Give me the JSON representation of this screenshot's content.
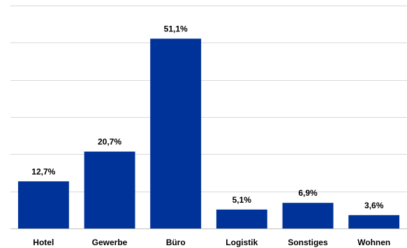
{
  "chart_data": {
    "type": "bar",
    "categories": [
      "Hotel",
      "Gewerbe",
      "Büro",
      "Logistik",
      "Sonstiges",
      "Wohnen"
    ],
    "values": [
      12.7,
      20.7,
      51.1,
      5.1,
      6.9,
      3.6
    ],
    "data_labels": [
      "12,7%",
      "20,7%",
      "51,1%",
      "5,1%",
      "6,9%",
      "3,6%"
    ],
    "title": "",
    "xlabel": "",
    "ylabel": "",
    "ylim": [
      0,
      60
    ],
    "grid": true,
    "legend": "none",
    "colors": {
      "bar": "#003399"
    }
  }
}
